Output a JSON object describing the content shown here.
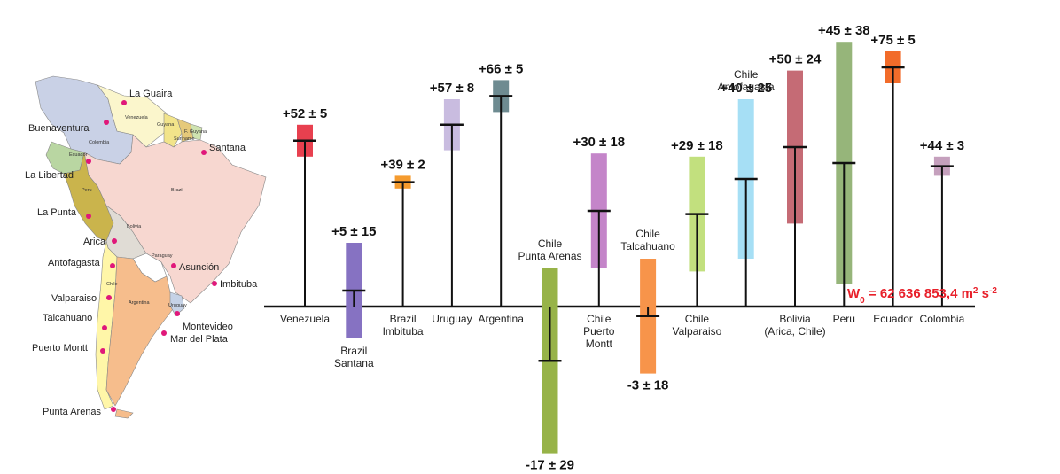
{
  "map": {
    "cities": [
      "La Guaira",
      "Buenaventura",
      "Santana",
      "La Libertad",
      "La Punta",
      "Arica",
      "Antofagasta",
      "Asunción",
      "Imbituba",
      "Valparaiso",
      "Talcahuano",
      "Montevideo",
      "Mar del Plata",
      "Puerto Montt",
      "Punta Arenas"
    ],
    "countries": [
      "Venezuela",
      "Guyana",
      "F. Guyana",
      "Suriname",
      "Colombia",
      "Ecuador",
      "Brazil",
      "Peru",
      "Bolivia",
      "Paraguay",
      "Chile",
      "Argentina",
      "Uruguay"
    ]
  },
  "chart_data": {
    "type": "bar",
    "categories": [
      {
        "label": [
          "Venezuela"
        ],
        "pos": "below"
      },
      {
        "label": [
          "Brazil",
          "Santana"
        ],
        "pos": "below"
      },
      {
        "label": [
          "Brazil",
          "Imbituba"
        ],
        "pos": "below"
      },
      {
        "label": [
          "Uruguay"
        ],
        "pos": "below"
      },
      {
        "label": [
          "Argentina"
        ],
        "pos": "below"
      },
      {
        "label": [
          "Chile",
          "Punta Arenas"
        ],
        "pos": "above"
      },
      {
        "label": [
          "Chile",
          "Puerto",
          "Montt"
        ],
        "pos": "below"
      },
      {
        "label": [
          "Chile",
          "Talcahuano"
        ],
        "pos": "above"
      },
      {
        "label": [
          "Chile",
          "Valparaiso"
        ],
        "pos": "below"
      },
      {
        "label": [
          "Chile",
          "Antofagasta"
        ],
        "pos": "above"
      },
      {
        "label": [
          "Bolivia",
          "(Arica, Chile)"
        ],
        "pos": "below"
      },
      {
        "label": [
          "Peru"
        ],
        "pos": "below"
      },
      {
        "label": [
          "Ecuador"
        ],
        "pos": "below"
      },
      {
        "label": [
          "Colombia"
        ],
        "pos": "below"
      }
    ],
    "values": [
      52,
      5,
      39,
      57,
      66,
      -17,
      30,
      -3,
      29,
      40,
      50,
      45,
      75,
      44
    ],
    "errors": [
      5,
      15,
      2,
      8,
      5,
      29,
      18,
      18,
      18,
      25,
      24,
      38,
      5,
      3
    ],
    "value_labels": [
      "+52 ± 5",
      "+5 ± 15",
      "+39 ± 2",
      "+57 ± 8",
      "+66 ± 5",
      "-17 ± 29",
      "+30 ± 18",
      "-3 ± 18",
      "+29 ± 18",
      "+40 ± 25",
      "+50 ± 24",
      "+45 ± 38",
      "+75 ± 5",
      "+44 ± 3"
    ],
    "colors": [
      "#e8404f",
      "#8672c2",
      "#f59b2e",
      "#c9bce0",
      "#6e8b91",
      "#97b348",
      "#c485c9",
      "#f7944a",
      "#c2e07e",
      "#a6dff5",
      "#c56b75",
      "#96b57a",
      "#f26c2a",
      "#c5a0bd"
    ],
    "annotation": "W0 = 62 636 853,4 m2 s-2"
  }
}
